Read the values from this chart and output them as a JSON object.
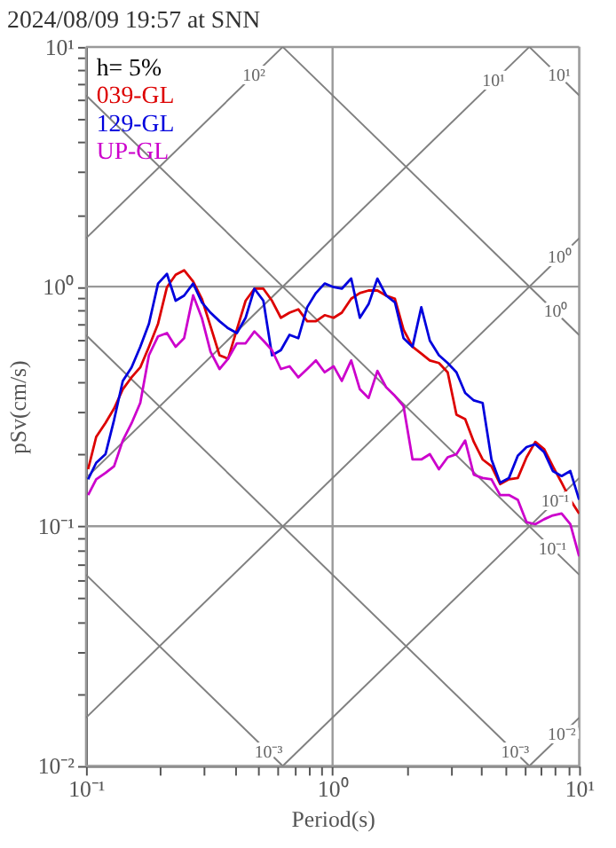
{
  "chart_data": {
    "type": "line",
    "title": "2024/08/09 19:57 at SNN",
    "xlabel": "Period(s)",
    "ylabel": "pSv(cm/s)",
    "legend_title": "h= 5%",
    "legend": "top left",
    "grid": true,
    "log": "xy",
    "xlim": [
      0.1,
      10
    ],
    "ylim": [
      0.01,
      10
    ],
    "xticks": [
      {
        "value": 0.1,
        "label": "10⁻¹"
      },
      {
        "value": 0.2,
        "label": null
      },
      {
        "value": 0.3,
        "label": null
      },
      {
        "value": 0.4,
        "label": null
      },
      {
        "value": 0.5,
        "label": null
      },
      {
        "value": 0.6,
        "label": null
      },
      {
        "value": 0.7,
        "label": null
      },
      {
        "value": 0.8,
        "label": null
      },
      {
        "value": 0.9,
        "label": null
      },
      {
        "value": 1,
        "label": "10⁰"
      },
      {
        "value": 2,
        "label": null
      },
      {
        "value": 3,
        "label": null
      },
      {
        "value": 4,
        "label": null
      },
      {
        "value": 5,
        "label": null
      },
      {
        "value": 6,
        "label": null
      },
      {
        "value": 7,
        "label": null
      },
      {
        "value": 8,
        "label": null
      },
      {
        "value": 9,
        "label": null
      },
      {
        "value": 10,
        "label": "10¹"
      }
    ],
    "yticks": [
      {
        "value": 0.01,
        "label": "10⁻²"
      },
      {
        "value": 0.02,
        "label": null
      },
      {
        "value": 0.03,
        "label": null
      },
      {
        "value": 0.04,
        "label": null
      },
      {
        "value": 0.05,
        "label": null
      },
      {
        "value": 0.06,
        "label": null
      },
      {
        "value": 0.07,
        "label": null
      },
      {
        "value": 0.08,
        "label": null
      },
      {
        "value": 0.09,
        "label": null
      },
      {
        "value": 0.1,
        "label": "10⁻¹"
      },
      {
        "value": 0.2,
        "label": null
      },
      {
        "value": 0.3,
        "label": null
      },
      {
        "value": 0.4,
        "label": null
      },
      {
        "value": 0.5,
        "label": null
      },
      {
        "value": 0.6,
        "label": null
      },
      {
        "value": 0.7,
        "label": null
      },
      {
        "value": 0.8,
        "label": null
      },
      {
        "value": 0.9,
        "label": null
      },
      {
        "value": 1,
        "label": "10⁰"
      },
      {
        "value": 2,
        "label": null
      },
      {
        "value": 3,
        "label": null
      },
      {
        "value": 4,
        "label": null
      },
      {
        "value": 5,
        "label": null
      },
      {
        "value": 6,
        "label": null
      },
      {
        "value": 7,
        "label": null
      },
      {
        "value": 8,
        "label": null
      },
      {
        "value": 9,
        "label": null
      },
      {
        "value": 10,
        "label": "10¹"
      }
    ],
    "x": [
      0.102,
      0.11,
      0.12,
      0.13,
      0.141,
      0.153,
      0.166,
      0.18,
      0.196,
      0.213,
      0.231,
      0.25,
      0.272,
      0.295,
      0.32,
      0.348,
      0.377,
      0.409,
      0.444,
      0.482,
      0.524,
      0.568,
      0.617,
      0.669,
      0.726,
      0.789,
      0.856,
      0.929,
      1.01,
      1.09,
      1.19,
      1.29,
      1.4,
      1.52,
      1.65,
      1.79,
      1.94,
      2.11,
      2.29,
      2.48,
      2.7,
      2.93,
      3.18,
      3.45,
      3.74,
      4.06,
      4.41,
      4.78,
      5.19,
      5.64,
      6.12,
      6.64,
      7.21,
      7.82,
      8.49,
      9.21,
      10
    ],
    "series": [
      {
        "name": "039-GL",
        "color": "#dd0000",
        "values": [
          0.173,
          0.236,
          0.27,
          0.31,
          0.373,
          0.418,
          0.46,
          0.561,
          0.7,
          0.995,
          1.12,
          1.17,
          1.05,
          0.89,
          0.683,
          0.517,
          0.5,
          0.661,
          0.873,
          0.98,
          0.98,
          0.873,
          0.741,
          0.778,
          0.804,
          0.717,
          0.717,
          0.76,
          0.741,
          0.778,
          0.89,
          0.94,
          0.963,
          0.963,
          0.917,
          0.89,
          0.661,
          0.561,
          0.525,
          0.492,
          0.48,
          0.439,
          0.292,
          0.28,
          0.225,
          0.19,
          0.178,
          0.15,
          0.157,
          0.159,
          0.194,
          0.225,
          0.21,
          0.178,
          0.152,
          0.129,
          0.113
        ]
      },
      {
        "name": "129-GL",
        "color": "#0000dd",
        "values": [
          0.157,
          0.184,
          0.2,
          0.278,
          0.404,
          0.46,
          0.561,
          0.7,
          1.03,
          1.13,
          0.873,
          0.917,
          1.03,
          0.86,
          0.778,
          0.717,
          0.67,
          0.64,
          0.741,
          0.98,
          0.873,
          0.517,
          0.543,
          0.629,
          0.609,
          0.82,
          0.94,
          1.03,
          0.995,
          0.98,
          1.08,
          0.741,
          0.845,
          1.08,
          0.917,
          0.86,
          0.609,
          0.561,
          0.82,
          0.595,
          0.517,
          0.48,
          0.439,
          0.36,
          0.335,
          0.327,
          0.19,
          0.152,
          0.159,
          0.197,
          0.214,
          0.22,
          0.204,
          0.17,
          0.162,
          0.17,
          0.129
        ]
      },
      {
        "name": "UP-GL",
        "color": "#cc00cc",
        "values": [
          0.135,
          0.157,
          0.167,
          0.178,
          0.228,
          0.269,
          0.327,
          0.517,
          0.62,
          0.64,
          0.561,
          0.609,
          0.92,
          0.74,
          0.534,
          0.453,
          0.5,
          0.58,
          0.58,
          0.65,
          0.595,
          0.543,
          0.453,
          0.465,
          0.418,
          0.453,
          0.492,
          0.439,
          0.465,
          0.404,
          0.492,
          0.373,
          0.343,
          0.445,
          0.38,
          0.35,
          0.317,
          0.19,
          0.19,
          0.2,
          0.173,
          0.194,
          0.2,
          0.228,
          0.164,
          0.159,
          0.157,
          0.135,
          0.135,
          0.129,
          0.104,
          0.102,
          0.107,
          0.111,
          0.113,
          0.102,
          0.075
        ]
      },
      {
        "type": "line",
        "color": "#808080",
        "x": [
          0.1,
          0.628
        ],
        "values": [
          1.59,
          10
        ]
      },
      {
        "type": "line",
        "color": "#808080",
        "x": [
          0.1,
          6.28
        ],
        "values": [
          0.159,
          10
        ]
      },
      {
        "type": "line",
        "color": "#808080",
        "x": [
          0.1,
          10
        ],
        "values": [
          0.0159,
          1.59
        ]
      },
      {
        "type": "line",
        "color": "#808080",
        "x": [
          0.628,
          10
        ],
        "values": [
          0.01,
          0.159
        ]
      },
      {
        "type": "line",
        "color": "#808080",
        "x": [
          6.28,
          10
        ],
        "values": [
          0.01,
          0.0159
        ]
      },
      {
        "type": "line",
        "color": "#808080",
        "x": [
          0.1,
          10
        ],
        "values": [
          6.28,
          0.0628
        ]
      },
      {
        "type": "line",
        "color": "#808080",
        "x": [
          0.628,
          10
        ],
        "values": [
          10,
          0.628
        ]
      },
      {
        "type": "line",
        "color": "#808080",
        "x": [
          6.28,
          10
        ],
        "values": [
          10,
          6.28
        ]
      },
      {
        "type": "line",
        "color": "#808080",
        "x": [
          0.1,
          6.28
        ],
        "values": [
          0.628,
          0.01
        ]
      },
      {
        "type": "line",
        "color": "#808080",
        "x": [
          0.1,
          0.628
        ],
        "values": [
          0.0628,
          0.01
        ]
      }
    ],
    "annotations": [
      {
        "text": "10²",
        "x": 0.48,
        "y": 7.6
      },
      {
        "text": "10¹",
        "x": 4.5,
        "y": 7.2
      },
      {
        "text": "10¹",
        "x": 8.3,
        "y": 7.6
      },
      {
        "text": "10⁰",
        "x": 8.3,
        "y": 1.32
      },
      {
        "text": "10⁰",
        "x": 8.0,
        "y": 0.785
      },
      {
        "text": "10⁻¹",
        "x": 8.0,
        "y": 0.127
      },
      {
        "text": "10⁻¹",
        "x": 7.8,
        "y": 0.0805
      },
      {
        "text": "10⁻³",
        "x": 0.55,
        "y": 0.0114
      },
      {
        "text": "10⁻³",
        "x": 5.5,
        "y": 0.0114
      },
      {
        "text": "10⁻²",
        "x": 8.5,
        "y": 0.0135
      }
    ]
  }
}
